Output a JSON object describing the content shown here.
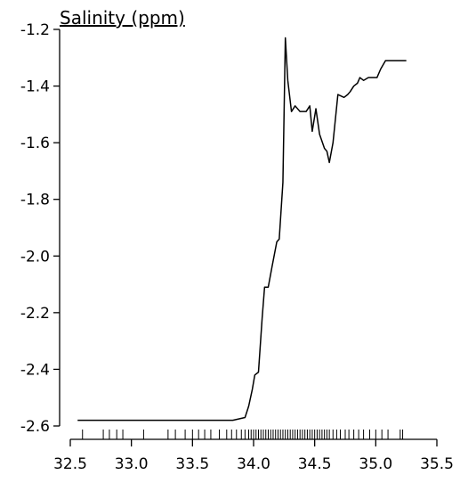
{
  "chart_data": {
    "type": "line",
    "title": "Salinity (ppm)",
    "x": [
      32.56,
      33.83,
      33.93,
      33.96,
      33.99,
      34.01,
      34.04,
      34.07,
      34.09,
      34.12,
      34.15,
      34.19,
      34.21,
      34.24,
      34.26,
      34.28,
      34.31,
      34.34,
      34.38,
      34.43,
      34.46,
      34.48,
      34.51,
      34.54,
      34.58,
      34.6,
      34.62,
      34.65,
      34.69,
      34.74,
      34.77,
      34.79,
      34.82,
      34.85,
      34.87,
      34.9,
      34.94,
      35.01,
      35.04,
      35.08,
      35.25
    ],
    "values": [
      -2.58,
      -2.58,
      -2.57,
      -2.53,
      -2.47,
      -2.42,
      -2.41,
      -2.22,
      -2.11,
      -2.11,
      -2.04,
      -1.95,
      -1.94,
      -1.74,
      -1.23,
      -1.38,
      -1.49,
      -1.47,
      -1.49,
      -1.49,
      -1.47,
      -1.56,
      -1.48,
      -1.57,
      -1.62,
      -1.63,
      -1.67,
      -1.6,
      -1.43,
      -1.44,
      -1.43,
      -1.42,
      -1.4,
      -1.39,
      -1.37,
      -1.38,
      -1.37,
      -1.37,
      -1.34,
      -1.31,
      -1.31
    ],
    "color": "#000000",
    "rug": [
      32.6,
      32.77,
      32.82,
      32.88,
      32.93,
      33.1,
      33.3,
      33.36,
      33.44,
      33.5,
      33.55,
      33.6,
      33.65,
      33.72,
      33.78,
      33.82,
      33.86,
      33.9,
      33.93,
      33.96,
      33.98,
      34.0,
      34.02,
      34.04,
      34.06,
      34.08,
      34.1,
      34.12,
      34.14,
      34.16,
      34.18,
      34.2,
      34.22,
      34.24,
      34.26,
      34.28,
      34.3,
      34.32,
      34.34,
      34.36,
      34.38,
      34.4,
      34.42,
      34.44,
      34.46,
      34.48,
      34.5,
      34.52,
      34.54,
      34.56,
      34.58,
      34.6,
      34.62,
      34.65,
      34.68,
      34.71,
      34.75,
      34.78,
      34.82,
      34.86,
      34.9,
      34.95,
      35.0,
      35.05,
      35.1,
      35.2,
      35.22
    ],
    "xlim": [
      32.5,
      35.5
    ],
    "xticks": [
      32.5,
      {
        "value": 33,
        "label": "33.0"
      },
      33.5,
      {
        "value": 34,
        "label": "34.0"
      },
      34.5,
      {
        "value": 35,
        "label": "35.0"
      },
      35.5
    ],
    "ylim": [
      -2.6,
      -1.2
    ],
    "yticks": [
      -1.2,
      -1.4,
      -1.6,
      -1.8,
      {
        "value": -2,
        "label": "-2.0"
      },
      -2.2,
      -2.4,
      -2.6
    ]
  }
}
